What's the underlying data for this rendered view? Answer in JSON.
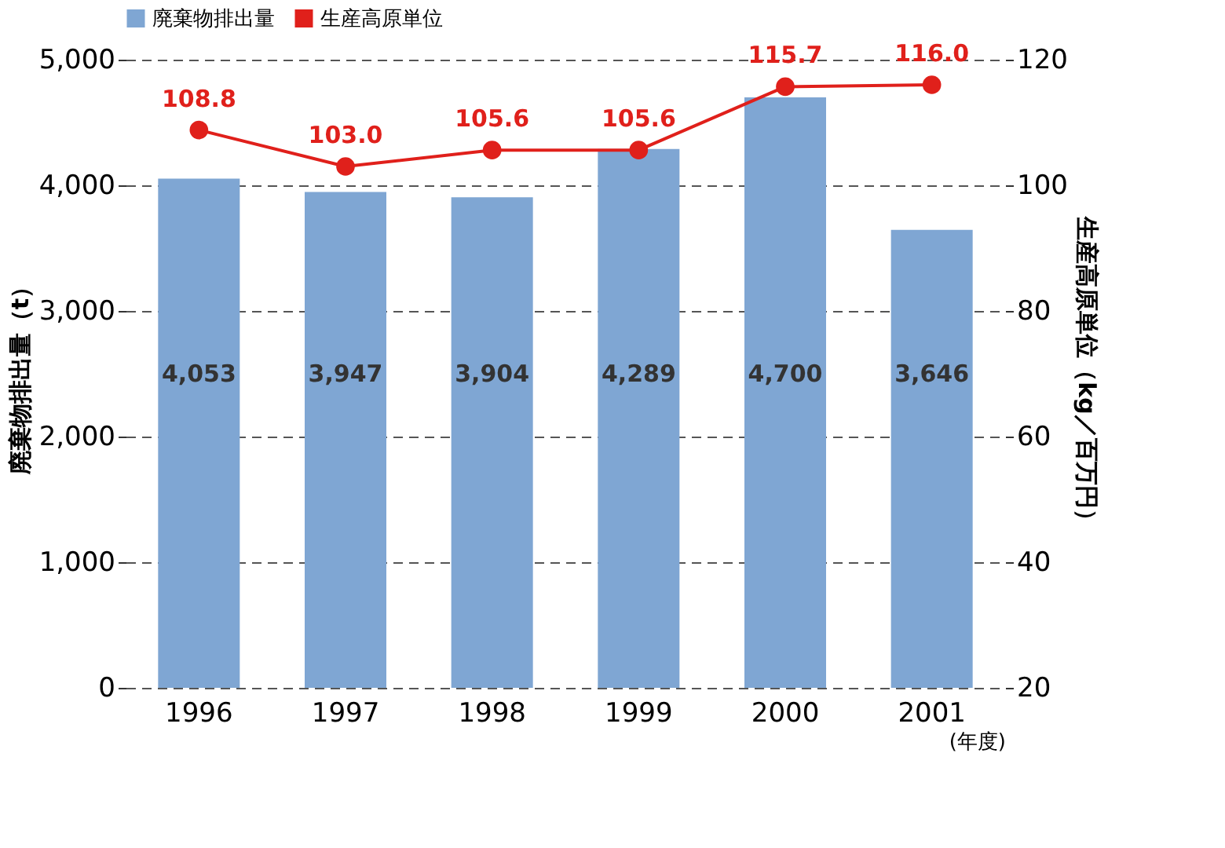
{
  "chart_data": {
    "type": "bar",
    "categories": [
      "1996",
      "1997",
      "1998",
      "1999",
      "2000",
      "2001"
    ],
    "series": [
      {
        "name": "廃棄物排出量",
        "color": "#7fa6d3",
        "values": [
          4053,
          3947,
          3904,
          4289,
          4700,
          3646
        ],
        "value_labels": [
          "4,053",
          "3,947",
          "3,904",
          "4,289",
          "4,700",
          "3,646"
        ]
      },
      {
        "name": "生産高原単位",
        "color": "#e0201b",
        "type": "line",
        "axis": "y2",
        "marker": "circle",
        "values": [
          108.8,
          103.0,
          105.6,
          105.6,
          115.7,
          116.0
        ],
        "value_labels": [
          "108.8",
          "103.0",
          "105.6",
          "105.6",
          "115.7",
          "116.0"
        ]
      }
    ],
    "xlabel": "(年度)",
    "ylabel": "廃棄物排出量（t）",
    "y2label": "生産高原単位（kg／百万円）",
    "ylim": [
      0,
      5000
    ],
    "yticks": [
      0,
      {
        "value": 1000,
        "label": "1,000"
      },
      {
        "value": 2000,
        "label": "2,000"
      },
      {
        "value": 3000,
        "label": "3,000"
      },
      {
        "value": 4000,
        "label": "4,000"
      },
      {
        "value": 5000,
        "label": "5,000"
      }
    ],
    "y2lim": [
      20,
      120
    ],
    "y2ticks": [
      20,
      40,
      60,
      80,
      100,
      120
    ],
    "grid": "y",
    "legend": "top"
  }
}
